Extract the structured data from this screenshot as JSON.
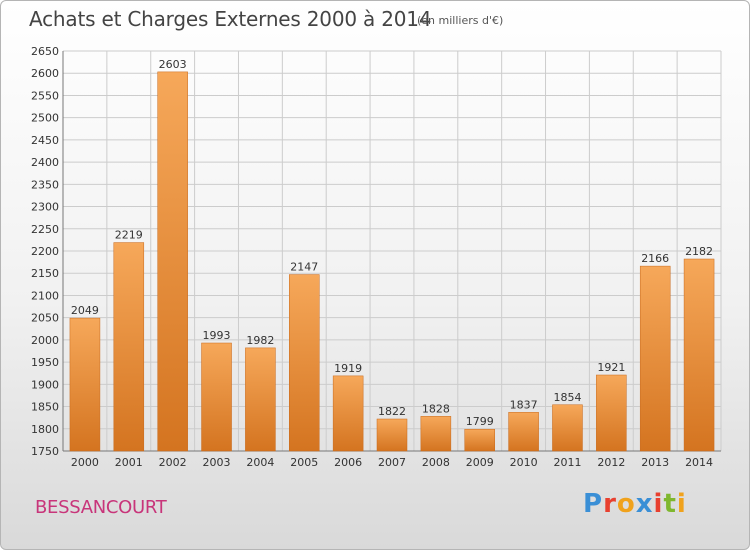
{
  "header": {
    "title": "Achats et Charges Externes 2000 à 2014",
    "subtitle": "(en milliers d'€)"
  },
  "footer": {
    "town": "BESSANCOURT",
    "logo_text": "Proxiti",
    "logo_colors": [
      "#3a8fd6",
      "#e8402f",
      "#f0a21c",
      "#3a8fd6",
      "#e8402f",
      "#7fb72e",
      "#f0a21c"
    ]
  },
  "colors": {
    "bar_light": "#f6a85a",
    "bar_dark": "#d97a22",
    "grid": "#cccccc",
    "town_text": "#c8357a"
  },
  "chart_data": {
    "type": "bar",
    "title": "Achats et Charges Externes 2000 à 2014",
    "subtitle": "(en milliers d'€)",
    "categories": [
      "2000",
      "2001",
      "2002",
      "2003",
      "2004",
      "2005",
      "2006",
      "2007",
      "2008",
      "2009",
      "2010",
      "2011",
      "2012",
      "2013",
      "2014"
    ],
    "values": [
      2049,
      2219,
      2603,
      1993,
      1982,
      2147,
      1919,
      1822,
      1828,
      1799,
      1837,
      1854,
      1921,
      2166,
      2182
    ],
    "ylim": [
      1750,
      2650
    ],
    "yticks": [
      1750,
      1800,
      1850,
      1900,
      1950,
      2000,
      2050,
      2100,
      2150,
      2200,
      2250,
      2300,
      2350,
      2400,
      2450,
      2500,
      2550,
      2600,
      2650
    ],
    "grid": true,
    "xlabel": "",
    "ylabel": ""
  }
}
